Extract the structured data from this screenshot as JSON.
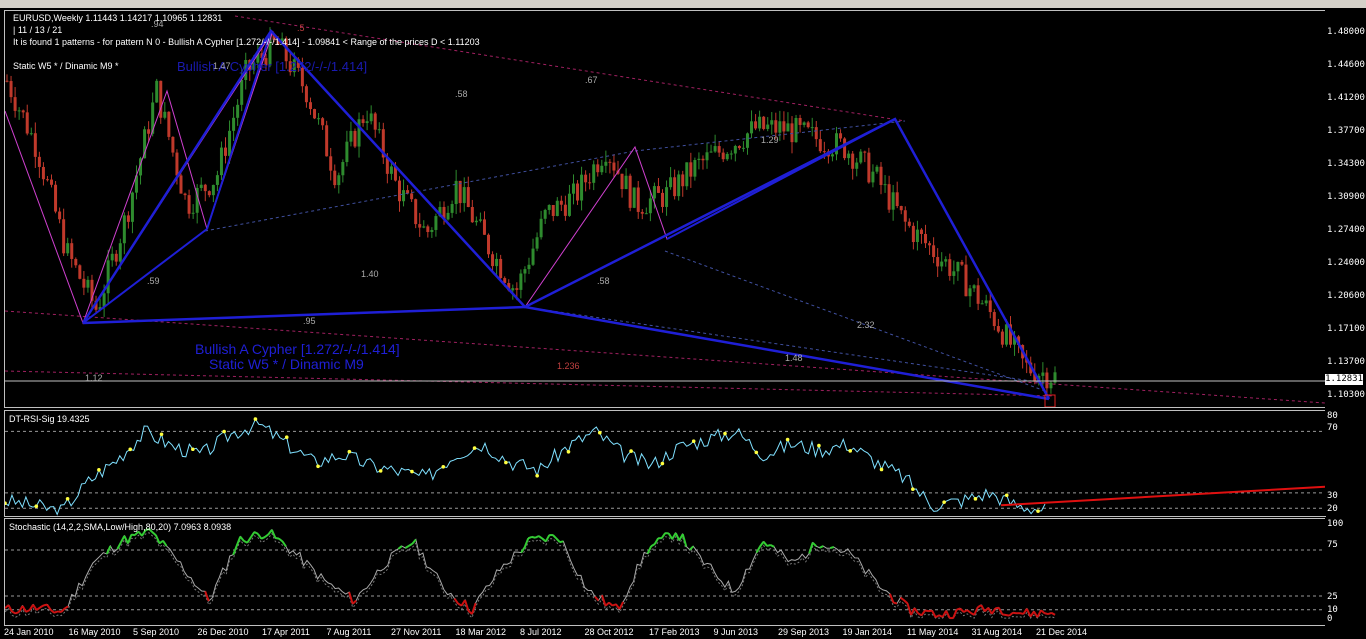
{
  "window": {
    "symbol_header": "EURUSD,Weekly  1.11443 1.14217 1.10965 1.12831",
    "pattern_counts": " | 11 / 13 / 21",
    "found_text": "It is found 1 patterns  -  for pattern N 0 - Bullish A Cypher [1.272/-/-/1.414]  - 1.09841 < Range of the prices D < 1.11203",
    "static_dinamic": "Static  W5   *  /  Dinamic  M9   *",
    "overlay_title_faint": "Bullish A Cypher [1.272/-/-/1.414]",
    "pattern_label_line1": "Bullish A Cypher [1.272/-/-/1.414]",
    "pattern_label_line2": "Static  W5   *  /  Dinamic  M9"
  },
  "price_axis": {
    "labels": [
      "1.48000",
      "1.44600",
      "1.41200",
      "1.37700",
      "1.34300",
      "1.30900",
      "1.27400",
      "1.24000",
      "1.20600",
      "1.17100",
      "1.13700",
      "1.10300"
    ],
    "current": "1.12831"
  },
  "ratios": [
    ".94",
    "1.47",
    ".5",
    ".58",
    ".67",
    ".59",
    "1.40",
    "1.29",
    ".58",
    ".95",
    "2.32",
    "1.48",
    "1.12",
    "1.236",
    "1.414"
  ],
  "rsi_panel": {
    "title": "DT-RSI-Sig 19.4325",
    "levels": [
      "80",
      "70",
      "30",
      "20"
    ]
  },
  "stoch_panel": {
    "title": "Stochastic (14,2,2,SMA,Low/High,80,20) 7.0963 8.0938",
    "levels": [
      "100",
      "75",
      "25",
      "10",
      "0"
    ]
  },
  "x_axis": [
    "24 Jan 2010",
    "16 May 2010",
    "5 Sep 2010",
    "26 Dec 2010",
    "17 Apr 2011",
    "7 Aug 2011",
    "27 Nov 2011",
    "18 Mar 2012",
    "8 Jul 2012",
    "28 Oct 2012",
    "17 Feb 2013",
    "9 Jun 2013",
    "29 Sep 2013",
    "19 Jan 2014",
    "11 May 2014",
    "31 Aug 2014",
    "21 Dec 2014"
  ],
  "colors": {
    "bull_candle": "#2e8b2e",
    "bear_candle": "#c0392b",
    "pattern_line": "#1f1fd6",
    "magenta_line": "#d040d0",
    "rsi_line": "#7fe0ff",
    "trend_red": "#e01010",
    "stoch_green": "#33cc33",
    "stoch_red": "#cc1111"
  },
  "chart_data": [
    {
      "type": "line",
      "title": "EURUSD,Weekly",
      "ylim": [
        1.103,
        1.48
      ],
      "pattern": {
        "name": "Bullish A Cypher [1.272/-/-/1.414]",
        "points": [
          {
            "x": "May 2010",
            "y": 1.19
          },
          {
            "x": "Apr 2011",
            "y": 1.49
          },
          {
            "x": "Jul 2012",
            "y": 1.205
          },
          {
            "x": "Dec 2013",
            "y": 1.393
          },
          {
            "x": "Dec 2014",
            "y": 1.109
          }
        ]
      },
      "series": [
        {
          "name": "close (approx)",
          "values": [
            1.43,
            1.36,
            1.25,
            1.19,
            1.29,
            1.42,
            1.3,
            1.33,
            1.44,
            1.47,
            1.42,
            1.33,
            1.4,
            1.32,
            1.27,
            1.32,
            1.26,
            1.21,
            1.29,
            1.31,
            1.36,
            1.3,
            1.31,
            1.34,
            1.36,
            1.38,
            1.38,
            1.37,
            1.36,
            1.33,
            1.28,
            1.25,
            1.22,
            1.18,
            1.13,
            1.12
          ]
        }
      ]
    },
    {
      "type": "line",
      "title": "DT-RSI-Sig 19.4325",
      "ylim": [
        15,
        80
      ],
      "series": [
        {
          "name": "DT-RSI-Sig",
          "values": [
            25,
            22,
            18,
            38,
            52,
            70,
            60,
            55,
            68,
            75,
            62,
            50,
            55,
            48,
            44,
            40,
            55,
            62,
            50,
            45,
            60,
            70,
            55,
            48,
            60,
            65,
            70,
            55,
            62,
            58,
            62,
            50,
            40,
            22,
            25,
            30,
            22,
            19
          ]
        }
      ]
    },
    {
      "type": "line",
      "title": "Stochastic (14,2,2,SMA,Low/High,80,20) 7.0963 8.0938",
      "ylim": [
        0,
        100
      ],
      "series": [
        {
          "name": "Stochastic %K",
          "values": [
            10,
            12,
            8,
            60,
            85,
            95,
            60,
            20,
            85,
            95,
            70,
            40,
            20,
            60,
            85,
            35,
            10,
            55,
            85,
            90,
            30,
            10,
            75,
            95,
            60,
            30,
            85,
            60,
            85,
            70,
            35,
            10,
            5,
            8,
            12,
            6,
            7
          ]
        }
      ]
    }
  ]
}
